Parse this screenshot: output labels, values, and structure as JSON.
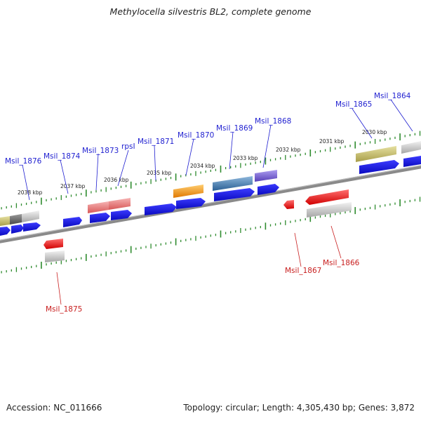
{
  "title": "Methylocella silvestris BL2, complete genome",
  "footer": {
    "accession": "Accession: NC_011666",
    "stats": "Topology: circular; Length: 4,305,430 bp; Genes: 3,872"
  },
  "colors": {
    "background": "#ffffff",
    "backbone": "#777777",
    "tick": "#2e8b2e",
    "plus_label": "#1f1fd0",
    "minus_label": "#c81e1e",
    "cds": "#1414e6",
    "highlight_red": "#e61414"
  },
  "ruler": {
    "tick_labels": [
      "2030 kbp",
      "2031 kbp",
      "2032 kbp",
      "2033 kbp",
      "2034 kbp",
      "2035 kbp",
      "2036 kbp",
      "2037 kbp",
      "2038 kbp"
    ]
  },
  "gene_labels": {
    "plus": [
      "Msil_1864",
      "Msil_1865",
      "Msil_1868",
      "Msil_1869",
      "Msil_1870",
      "Msil_1871",
      "rpsI",
      "Msil_1873",
      "Msil_1874",
      "Msil_1876"
    ],
    "minus": [
      "Msil_1866",
      "Msil_1867",
      "Msil_1875"
    ]
  }
}
